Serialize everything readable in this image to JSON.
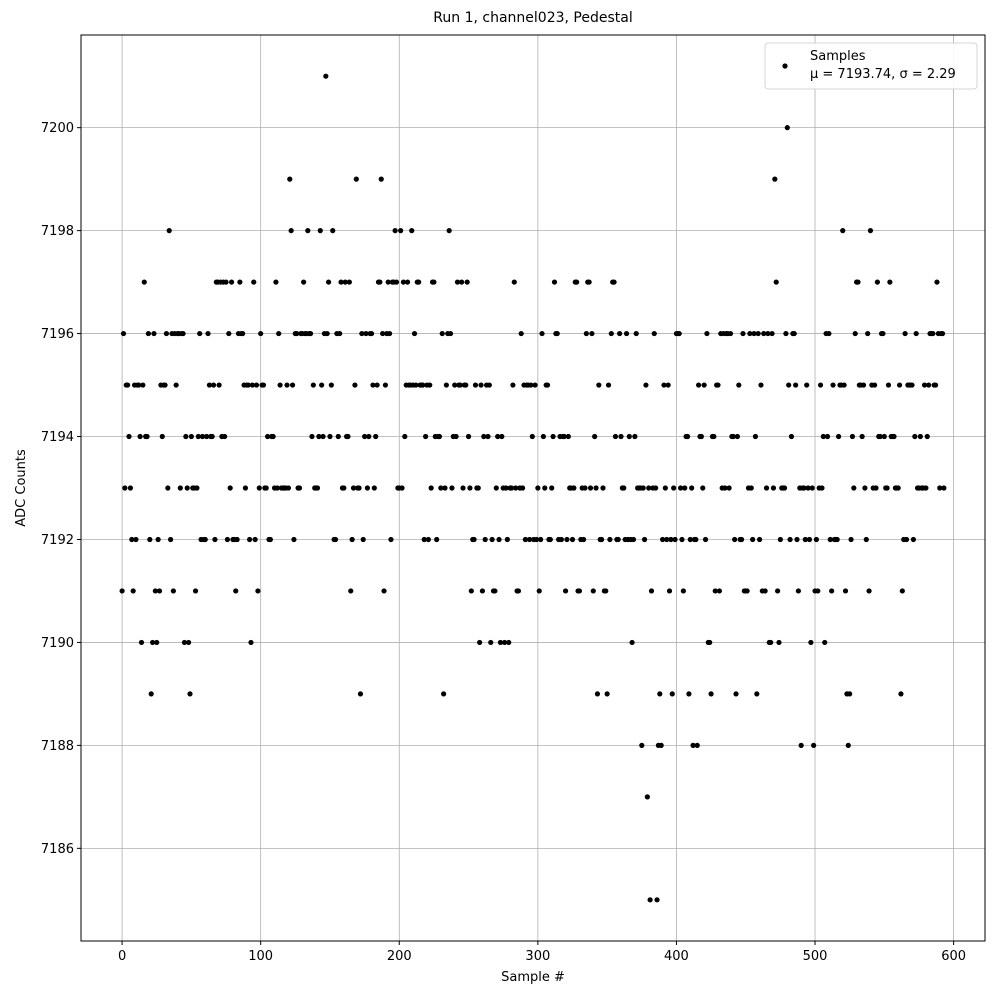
{
  "chart_data": {
    "type": "scatter",
    "title": "Run 1, channel023, Pedestal",
    "xlabel": "Sample #",
    "ylabel": "ADC Counts",
    "xlim": [
      -29.65,
      622.65
    ],
    "ylim": [
      7184.2,
      7201.8
    ],
    "xticks": [
      0,
      100,
      200,
      300,
      400,
      500,
      600
    ],
    "yticks": [
      7186,
      7188,
      7190,
      7192,
      7194,
      7196,
      7198,
      7200
    ],
    "grid": true,
    "legend": "upper right",
    "legend_note": "μ = 7193.74, σ = 2.29",
    "series": [
      {
        "name": "Samples",
        "color": "#000000",
        "x": [
          0,
          1,
          2,
          3,
          4,
          5,
          6,
          7,
          8,
          9,
          10,
          11,
          12,
          13,
          14,
          15,
          16,
          17,
          18,
          19,
          20,
          21,
          22,
          23,
          24,
          25,
          26,
          27,
          28,
          29,
          30,
          31,
          32,
          33,
          34,
          35,
          36,
          37,
          38,
          39,
          40,
          41,
          42,
          43,
          44,
          45,
          46,
          47,
          48,
          49,
          50,
          51,
          52,
          53,
          54,
          55,
          56,
          57,
          58,
          59,
          60,
          61,
          62,
          63,
          64,
          65,
          66,
          67,
          68,
          69,
          70,
          71,
          72,
          73,
          74,
          75,
          76,
          77,
          78,
          79,
          80,
          81,
          82,
          83,
          84,
          85,
          86,
          87,
          88,
          89,
          90,
          91,
          92,
          93,
          94,
          95,
          96,
          97,
          98,
          99,
          100,
          101,
          102,
          103,
          104,
          105,
          106,
          107,
          108,
          109,
          110,
          111,
          112,
          113,
          114,
          115,
          116,
          117,
          118,
          119,
          120,
          121,
          122,
          123,
          124,
          125,
          126,
          127,
          128,
          129,
          130,
          131,
          132,
          133,
          134,
          135,
          136,
          137,
          138,
          139,
          140,
          141,
          142,
          143,
          144,
          145,
          146,
          147,
          148,
          149,
          150,
          151,
          152,
          153,
          154,
          155,
          156,
          157,
          158,
          159,
          160,
          161,
          162,
          163,
          164,
          165,
          166,
          167,
          168,
          169,
          170,
          171,
          172,
          173,
          174,
          175,
          176,
          177,
          178,
          179,
          180,
          181,
          182,
          183,
          184,
          185,
          186,
          187,
          188,
          189,
          190,
          191,
          192,
          193,
          194,
          195,
          196,
          197,
          198,
          199,
          200,
          201,
          202,
          203,
          204,
          205,
          206,
          207,
          208,
          209,
          210,
          211,
          212,
          213,
          214,
          215,
          216,
          217,
          218,
          219,
          220,
          221,
          222,
          223,
          224,
          225,
          226,
          227,
          228,
          229,
          230,
          231,
          232,
          233,
          234,
          235,
          236,
          237,
          238,
          239,
          240,
          241,
          242,
          243,
          244,
          245,
          246,
          247,
          248,
          249,
          250,
          251,
          252,
          253,
          254,
          255,
          256,
          257,
          258,
          259,
          260,
          261,
          262,
          263,
          264,
          265,
          266,
          267,
          268,
          269,
          270,
          271,
          272,
          273,
          274,
          275,
          276,
          277,
          278,
          279,
          280,
          281,
          282,
          283,
          284,
          285,
          286,
          287,
          288,
          289,
          290,
          291,
          292,
          293,
          294,
          295,
          296,
          297,
          298,
          299,
          300,
          301,
          302,
          303,
          304,
          305,
          306,
          307,
          308,
          309,
          310,
          311,
          312,
          313,
          314,
          315,
          316,
          317,
          318,
          319,
          320,
          321,
          322,
          323,
          324,
          325,
          326,
          327,
          328,
          329,
          330,
          331,
          332,
          333,
          334,
          335,
          336,
          337,
          338,
          339,
          340,
          341,
          342,
          343,
          344,
          345,
          346,
          347,
          348,
          349,
          350,
          351,
          352,
          353,
          354,
          355,
          356,
          357,
          358,
          359,
          360,
          361,
          362,
          363,
          364,
          365,
          366,
          367,
          368,
          369,
          370,
          371,
          372,
          373,
          374,
          375,
          376,
          377,
          378,
          379,
          380,
          381,
          382,
          383,
          384,
          385,
          386,
          387,
          388,
          389,
          390,
          391,
          392,
          393,
          394,
          395,
          396,
          397,
          398,
          399,
          400,
          401,
          402,
          403,
          404,
          405,
          406,
          407,
          408,
          409,
          410,
          411,
          412,
          413,
          414,
          415,
          416,
          417,
          418,
          419,
          420,
          421,
          422,
          423,
          424,
          425,
          426,
          427,
          428,
          429,
          430,
          431,
          432,
          433,
          434,
          435,
          436,
          437,
          438,
          439,
          440,
          441,
          442,
          443,
          444,
          445,
          446,
          447,
          448,
          449,
          450,
          451,
          452,
          453,
          454,
          455,
          456,
          457,
          458,
          459,
          460,
          461,
          462,
          463,
          464,
          465,
          466,
          467,
          468,
          469,
          470,
          471,
          472,
          473,
          474,
          475,
          476,
          477,
          478,
          479,
          480,
          481,
          482,
          483,
          484,
          485,
          486,
          487,
          488,
          489,
          490,
          491,
          492,
          493,
          494,
          495,
          496,
          497,
          498,
          499,
          500,
          501,
          502,
          503,
          504,
          505,
          506,
          507,
          508,
          509,
          510,
          511,
          512,
          513,
          514,
          515,
          516,
          517,
          518,
          519,
          520,
          521,
          522,
          523,
          524,
          525,
          526,
          527,
          528,
          529,
          530,
          531,
          532,
          533,
          534,
          535,
          536,
          537,
          538,
          539,
          540,
          541,
          542,
          543,
          544,
          545,
          546,
          547,
          548,
          549,
          550,
          551,
          552,
          553,
          554,
          555,
          556,
          557,
          558,
          559,
          560,
          561,
          562,
          563,
          564,
          565,
          566,
          567,
          568,
          569,
          570,
          571,
          572,
          573,
          574,
          575,
          576,
          577,
          578,
          579,
          580,
          581,
          582,
          583,
          584,
          585,
          586,
          587,
          588,
          589,
          590,
          591,
          592,
          593
        ],
        "values": [
          7191,
          7196,
          7193,
          7195,
          7195,
          7194,
          7193,
          7192,
          7191,
          7195,
          7192,
          7195,
          7195,
          7194,
          7190,
          7195,
          7197,
          7194,
          7194,
          7196,
          7192,
          7189,
          7190,
          7196,
          7191,
          7190,
          7192,
          7191,
          7195,
          7194,
          7195,
          7195,
          7196,
          7193,
          7198,
          7192,
          7196,
          7191,
          7196,
          7195,
          7196,
          7196,
          7193,
          7196,
          7196,
          7190,
          7194,
          7193,
          7190,
          7189,
          7194,
          7193,
          7193,
          7191,
          7193,
          7194,
          7196,
          7192,
          7194,
          7192,
          7192,
          7194,
          7196,
          7195,
          7194,
          7194,
          7195,
          7192,
          7197,
          7197,
          7195,
          7197,
          7194,
          7197,
          7194,
          7197,
          7192,
          7196,
          7193,
          7197,
          7192,
          7192,
          7191,
          7192,
          7196,
          7197,
          7196,
          7196,
          7195,
          7193,
          7195,
          7195,
          7192,
          7190,
          7195,
          7197,
          7192,
          7195,
          7191,
          7193,
          7196,
          7195,
          7195,
          7193,
          7193,
          7194,
          7192,
          7192,
          7194,
          7194,
          7193,
          7197,
          7193,
          7196,
          7195,
          7193,
          7193,
          7193,
          7193,
          7195,
          7193,
          7199,
          7198,
          7195,
          7192,
          7196,
          7196,
          7193,
          7193,
          7196,
          7196,
          7197,
          7196,
          7196,
          7198,
          7196,
          7196,
          7194,
          7195,
          7193,
          7193,
          7193,
          7194,
          7198,
          7195,
          7194,
          7196,
          7201,
          7196,
          7197,
          7194,
          7195,
          7198,
          7192,
          7192,
          7196,
          7194,
          7196,
          7197,
          7193,
          7193,
          7197,
          7194,
          7194,
          7197,
          7191,
          7192,
          7193,
          7195,
          7199,
          7193,
          7193,
          7189,
          7196,
          7192,
          7194,
          7196,
          7193,
          7194,
          7196,
          7196,
          7195,
          7193,
          7194,
          7195,
          7197,
          7197,
          7199,
          7196,
          7191,
          7195,
          7196,
          7197,
          7196,
          7192,
          7197,
          7197,
          7198,
          7197,
          7193,
          7193,
          7198,
          7193,
          7197,
          7194,
          7195,
          7197,
          7195,
          7195,
          7198,
          7195,
          7196,
          7195,
          7197,
          7197,
          7195,
          7195,
          7195,
          7192,
          7194,
          7195,
          7192,
          7195,
          7193,
          7197,
          7197,
          7194,
          7192,
          7194,
          7194,
          7193,
          7196,
          7189,
          7193,
          7195,
          7196,
          7198,
          7196,
          7193,
          7194,
          7195,
          7194,
          7197,
          7195,
          7195,
          7197,
          7193,
          7195,
          7195,
          7197,
          7194,
          7193,
          7191,
          7192,
          7192,
          7195,
          7193,
          7193,
          7190,
          7195,
          7191,
          7194,
          7192,
          7195,
          7194,
          7195,
          7190,
          7192,
          7191,
          7191,
          7193,
          7194,
          7192,
          7190,
          7194,
          7193,
          7190,
          7193,
          7192,
          7190,
          7193,
          7193,
          7195,
          7197,
          7193,
          7191,
          7191,
          7193,
          7196,
          7193,
          7195,
          7192,
          7195,
          7195,
          7192,
          7195,
          7194,
          7192,
          7195,
          7192,
          7193,
          7191,
          7192,
          7196,
          7194,
          7193,
          7195,
          7195,
          7192,
          7192,
          7193,
          7194,
          7197,
          7196,
          7196,
          7192,
          7194,
          7192,
          7194,
          7194,
          7191,
          7192,
          7194,
          7193,
          7193,
          7192,
          7193,
          7197,
          7197,
          7191,
          7191,
          7192,
          7193,
          7192,
          7193,
          7196,
          7197,
          7197,
          7193,
          7196,
          7191,
          7194,
          7193,
          7189,
          7195,
          7192,
          7192,
          7193,
          7191,
          7191,
          7189,
          7195,
          7192,
          7196,
          7197,
          7197,
          7194,
          7192,
          7192,
          7196,
          7194,
          7193,
          7193,
          7192,
          7196,
          7192,
          7194,
          7192,
          7190,
          7192,
          7194,
          7196,
          7193,
          7193,
          7193,
          7188,
          7193,
          7192,
          7195,
          7187,
          7193,
          7185,
          7191,
          7193,
          7196,
          7193,
          7185,
          7188,
          7189,
          7188,
          7192,
          7195,
          7193,
          7192,
          7195,
          7191,
          7192,
          7189,
          7193,
          7192,
          7196,
          7196,
          7196,
          7193,
          7192,
          7191,
          7193,
          7194,
          7194,
          7189,
          7192,
          7193,
          7188,
          7192,
          7192,
          7188,
          7195,
          7194,
          7194,
          7193,
          7195,
          7192,
          7196,
          7190,
          7190,
          7189,
          7194,
          7194,
          7191,
          7195,
          7195,
          7191,
          7196,
          7193,
          7196,
          7193,
          7196,
          7196,
          7193,
          7196,
          7194,
          7194,
          7192,
          7189,
          7194,
          7195,
          7192,
          7192,
          7196,
          7191,
          7191,
          7191,
          7193,
          7196,
          7193,
          7192,
          7196,
          7194,
          7189,
          7196,
          7192,
          7195,
          7191,
          7196,
          7191,
          7193,
          7196,
          7190,
          7190,
          7196,
          7193,
          7199,
          7197,
          7191,
          7190,
          7192,
          7193,
          7193,
          7193,
          7196,
          7200,
          7195,
          7192,
          7194,
          7196,
          7196,
          7195,
          7192,
          7191,
          7193,
          7188,
          7193,
          7193,
          7192,
          7195,
          7193,
          7192,
          7190,
          7193,
          7188,
          7191,
          7192,
          7191,
          7193,
          7195,
          7193,
          7194,
          7190,
          7196,
          7194,
          7196,
          7192,
          7191,
          7195,
          7192,
          7192,
          7192,
          7194,
          7195,
          7195,
          7198,
          7195,
          7191,
          7189,
          7188,
          7189,
          7192,
          7194,
          7193,
          7196,
          7197,
          7197,
          7195,
          7195,
          7194,
          7195,
          7193,
          7192,
          7196,
          7191,
          7198,
          7195,
          7193,
          7195,
          7193,
          7197,
          7194,
          7194,
          7196,
          7196,
          7194,
          7193,
          7193,
          7195,
          7197,
          7194,
          7194,
          7194,
          7193,
          7193,
          7193,
          7195,
          7189,
          7191,
          7192,
          7196,
          7192,
          7195,
          7195,
          7195,
          7195,
          7192,
          7194,
          7196,
          7193,
          7193,
          7194,
          7193,
          7193,
          7195,
          7193,
          7194,
          7195,
          7196,
          7196,
          7196,
          7195,
          7195,
          7197,
          7196,
          7193,
          7196,
          7196,
          7193
        ]
      }
    ]
  }
}
